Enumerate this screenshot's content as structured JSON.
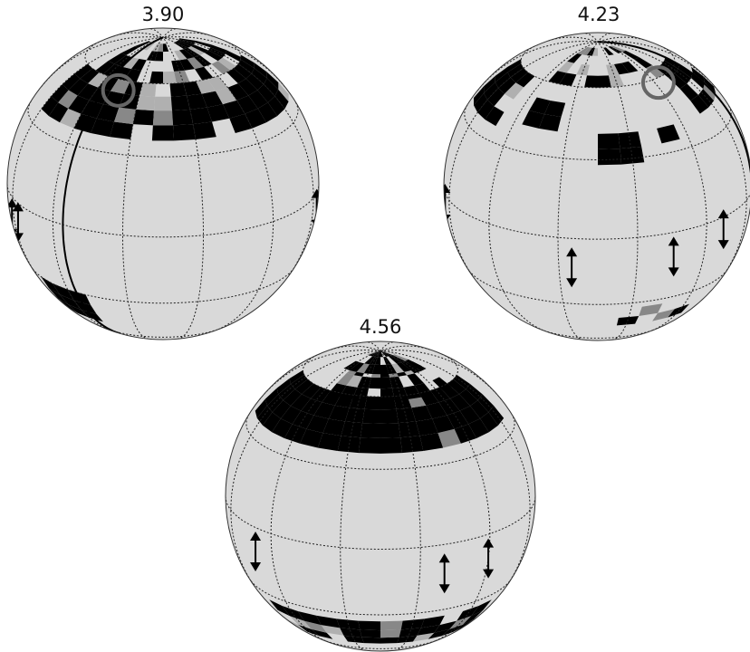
{
  "panels": [
    {
      "label": "3.90"
    },
    {
      "label": "4.23"
    },
    {
      "label": "4.56"
    }
  ]
}
